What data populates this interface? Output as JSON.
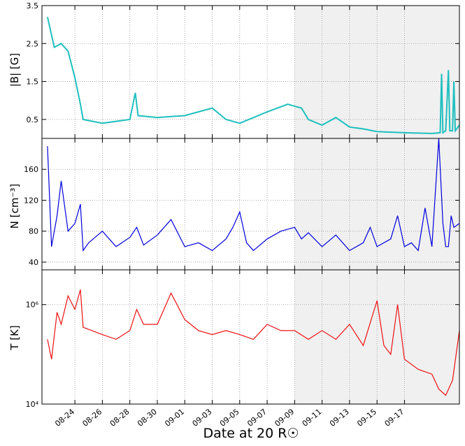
{
  "chart_data": [
    {
      "type": "line",
      "ylabel": "|B| [G]",
      "ylim": [
        0,
        3.5
      ],
      "yticks": [
        0.5,
        1.5,
        2.5,
        3.5
      ],
      "ytick_labels": [
        "0.5",
        "1.5",
        "2.5",
        "3.5"
      ],
      "color": "#1fbfbf",
      "grid": true,
      "series": [
        {
          "values": [
            [
              0,
              3.2
            ],
            [
              0.5,
              2.4
            ],
            [
              1,
              2.5
            ],
            [
              1.5,
              2.3
            ],
            [
              2,
              1.6
            ],
            [
              2.4,
              0.9
            ],
            [
              2.6,
              0.5
            ],
            [
              4,
              0.4
            ],
            [
              6,
              0.5
            ],
            [
              6.4,
              1.2
            ],
            [
              6.6,
              0.6
            ],
            [
              8,
              0.55
            ],
            [
              10,
              0.6
            ],
            [
              12,
              0.8
            ],
            [
              13,
              0.5
            ],
            [
              14,
              0.4
            ],
            [
              16,
              0.7
            ],
            [
              17.5,
              0.9
            ],
            [
              18,
              0.85
            ],
            [
              18.5,
              0.8
            ],
            [
              19,
              0.5
            ],
            [
              20,
              0.35
            ],
            [
              21,
              0.55
            ],
            [
              22,
              0.3
            ],
            [
              23,
              0.25
            ],
            [
              24,
              0.18
            ],
            [
              26,
              0.15
            ],
            [
              28,
              0.13
            ],
            [
              28.6,
              0.15
            ],
            [
              28.7,
              1.7
            ],
            [
              28.8,
              0.15
            ],
            [
              29,
              0.2
            ],
            [
              29.2,
              1.8
            ],
            [
              29.3,
              0.2
            ],
            [
              29.5,
              0.2
            ],
            [
              29.6,
              1.5
            ],
            [
              29.7,
              0.2
            ],
            [
              30,
              0.35
            ]
          ]
        }
      ]
    },
    {
      "type": "line",
      "ylabel": "N [cm⁻³]",
      "ylim": [
        30,
        200
      ],
      "yticks": [
        40,
        80,
        120,
        160
      ],
      "ytick_labels": [
        "40",
        "80",
        "120",
        "160"
      ],
      "color": "#0000dd",
      "grid": true,
      "series": [
        {
          "values": [
            [
              0,
              190
            ],
            [
              0.3,
              60
            ],
            [
              0.7,
              100
            ],
            [
              1,
              145
            ],
            [
              1.5,
              80
            ],
            [
              2,
              90
            ],
            [
              2.4,
              115
            ],
            [
              2.6,
              55
            ],
            [
              3,
              65
            ],
            [
              4,
              80
            ],
            [
              5,
              60
            ],
            [
              6,
              72
            ],
            [
              6.5,
              85
            ],
            [
              7,
              62
            ],
            [
              8,
              75
            ],
            [
              9,
              95
            ],
            [
              10,
              60
            ],
            [
              11,
              65
            ],
            [
              12,
              55
            ],
            [
              13,
              70
            ],
            [
              13.5,
              85
            ],
            [
              14,
              105
            ],
            [
              14.5,
              65
            ],
            [
              15,
              55
            ],
            [
              16,
              70
            ],
            [
              17,
              80
            ],
            [
              18,
              85
            ],
            [
              18.5,
              70
            ],
            [
              19,
              78
            ],
            [
              20,
              60
            ],
            [
              21,
              75
            ],
            [
              22,
              55
            ],
            [
              23,
              65
            ],
            [
              23.5,
              85
            ],
            [
              24,
              60
            ],
            [
              25,
              70
            ],
            [
              25.5,
              100
            ],
            [
              26,
              60
            ],
            [
              26.5,
              65
            ],
            [
              27,
              55
            ],
            [
              27.5,
              110
            ],
            [
              28,
              60
            ],
            [
              28.5,
              200
            ],
            [
              28.8,
              90
            ],
            [
              29,
              60
            ],
            [
              29.2,
              60
            ],
            [
              29.4,
              100
            ],
            [
              29.6,
              85
            ],
            [
              30,
              90
            ]
          ]
        }
      ]
    },
    {
      "type": "line",
      "ylabel": "T [K]",
      "yscale": "log",
      "ylim": [
        10000,
        5000000
      ],
      "yticks": [
        10000,
        1000000
      ],
      "ytick_labels": [
        "10⁴",
        "10⁶"
      ],
      "color": "#ee1111",
      "grid": true,
      "series": [
        {
          "values": [
            [
              0,
              200000
            ],
            [
              0.3,
              80000
            ],
            [
              0.7,
              700000
            ],
            [
              1,
              400000
            ],
            [
              1.5,
              1500000
            ],
            [
              2,
              800000
            ],
            [
              2.4,
              2000000
            ],
            [
              2.6,
              350000
            ],
            [
              4,
              250000
            ],
            [
              5,
              200000
            ],
            [
              6,
              300000
            ],
            [
              6.5,
              800000
            ],
            [
              7,
              400000
            ],
            [
              8,
              400000
            ],
            [
              9,
              1700000
            ],
            [
              10,
              500000
            ],
            [
              11,
              300000
            ],
            [
              12,
              250000
            ],
            [
              13,
              300000
            ],
            [
              14,
              250000
            ],
            [
              15,
              200000
            ],
            [
              16,
              400000
            ],
            [
              17,
              300000
            ],
            [
              18,
              300000
            ],
            [
              19,
              200000
            ],
            [
              20,
              300000
            ],
            [
              21,
              200000
            ],
            [
              22,
              400000
            ],
            [
              23,
              150000
            ],
            [
              24,
              1200000
            ],
            [
              24.5,
              150000
            ],
            [
              25,
              100000
            ],
            [
              25.5,
              1000000
            ],
            [
              26,
              80000
            ],
            [
              27,
              50000
            ],
            [
              28,
              40000
            ],
            [
              28.5,
              20000
            ],
            [
              29,
              15000
            ],
            [
              29.5,
              30000
            ],
            [
              30,
              300000
            ]
          ]
        }
      ]
    }
  ],
  "xaxis": {
    "title": "Date at 20 R☉",
    "ticks": [
      {
        "x": 2,
        "label": "08-24"
      },
      {
        "x": 4,
        "label": "08-26"
      },
      {
        "x": 6,
        "label": "08-28"
      },
      {
        "x": 8,
        "label": "08-30"
      },
      {
        "x": 10,
        "label": "09-01"
      },
      {
        "x": 12,
        "label": "09-03"
      },
      {
        "x": 14,
        "label": "09-05"
      },
      {
        "x": 16,
        "label": "09-07"
      },
      {
        "x": 18,
        "label": "09-09"
      },
      {
        "x": 20,
        "label": "09-11"
      },
      {
        "x": 22,
        "label": "09-13"
      },
      {
        "x": 24,
        "label": "09-15"
      },
      {
        "x": 26,
        "label": "09-17"
      }
    ],
    "shaded_region": [
      18,
      30
    ]
  }
}
